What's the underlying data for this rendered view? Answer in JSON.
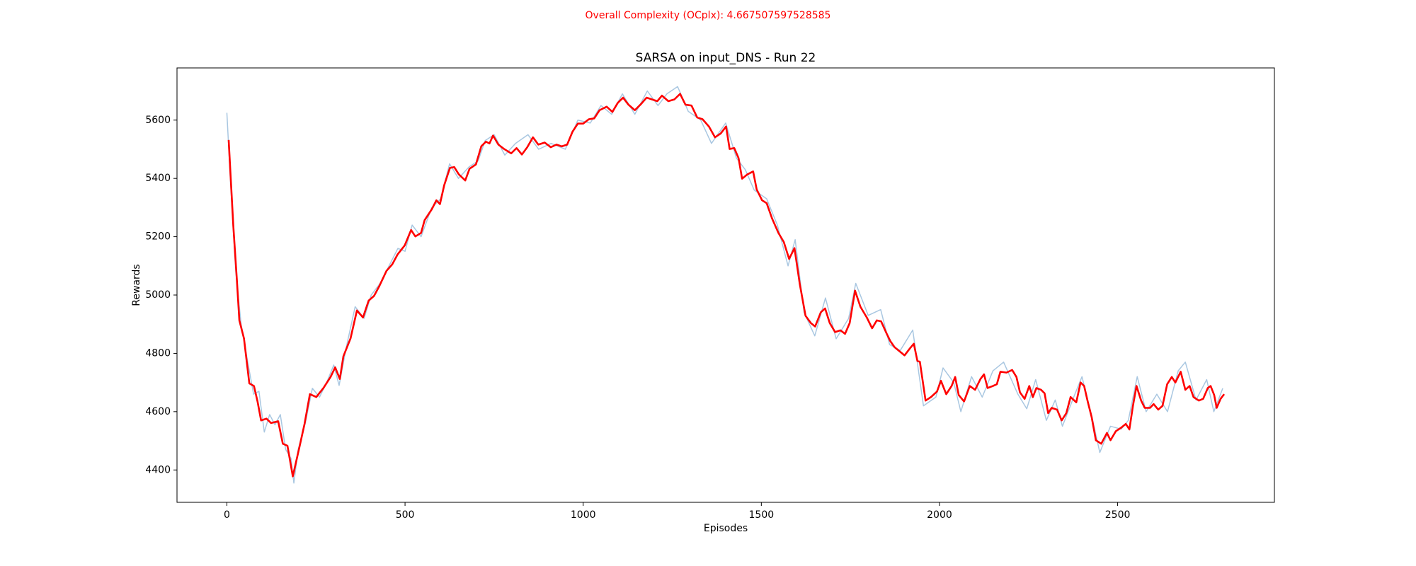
{
  "chart_data": {
    "type": "line",
    "suptitle": "Overall Complexity (OCplx): 4.667507597528585",
    "title": "SARSA on input_DNS - Run 22",
    "xlabel": "Episodes",
    "ylabel": "Rewards",
    "xlim": [
      -140,
      2940
    ],
    "ylim": [
      4289,
      5779
    ],
    "xticks": [
      0,
      500,
      1000,
      1500,
      2000,
      2500
    ],
    "yticks": [
      4400,
      4600,
      4800,
      5000,
      5200,
      5400,
      5600
    ],
    "series": [
      {
        "color": "#a9c7e1",
        "width": 1.5,
        "x": [
          0,
          10,
          25,
          40,
          60,
          75,
          90,
          105,
          120,
          135,
          150,
          165,
          180,
          188,
          200,
          220,
          240,
          260,
          280,
          300,
          315,
          335,
          360,
          385,
          405,
          430,
          455,
          480,
          500,
          520,
          545,
          575,
          600,
          625,
          650,
          680,
          705,
          725,
          750,
          780,
          810,
          845,
          875,
          910,
          950,
          985,
          1020,
          1050,
          1080,
          1110,
          1145,
          1180,
          1210,
          1235,
          1265,
          1295,
          1330,
          1360,
          1400,
          1430,
          1455,
          1480,
          1515,
          1545,
          1575,
          1595,
          1620,
          1650,
          1680,
          1710,
          1745,
          1765,
          1800,
          1835,
          1860,
          1890,
          1925,
          1955,
          1990,
          2010,
          2040,
          2060,
          2090,
          2120,
          2150,
          2180,
          2220,
          2245,
          2270,
          2300,
          2325,
          2345,
          2380,
          2400,
          2430,
          2450,
          2480,
          2510,
          2530,
          2555,
          2580,
          2610,
          2640,
          2670,
          2690,
          2720,
          2750,
          2770,
          2795
        ],
        "values": [
          5625,
          5390,
          5080,
          4900,
          4760,
          4660,
          4670,
          4530,
          4590,
          4555,
          4590,
          4470,
          4440,
          4355,
          4470,
          4560,
          4680,
          4650,
          4700,
          4760,
          4690,
          4820,
          4960,
          4920,
          5000,
          5040,
          5100,
          5160,
          5150,
          5240,
          5200,
          5300,
          5330,
          5450,
          5400,
          5440,
          5460,
          5530,
          5550,
          5480,
          5520,
          5550,
          5500,
          5520,
          5500,
          5600,
          5590,
          5650,
          5620,
          5690,
          5620,
          5700,
          5650,
          5690,
          5715,
          5630,
          5600,
          5520,
          5590,
          5470,
          5430,
          5360,
          5330,
          5240,
          5100,
          5190,
          4940,
          4860,
          4990,
          4850,
          4920,
          5040,
          4930,
          4950,
          4830,
          4810,
          4880,
          4620,
          4650,
          4750,
          4700,
          4600,
          4720,
          4650,
          4740,
          4770,
          4660,
          4610,
          4710,
          4570,
          4640,
          4550,
          4660,
          4720,
          4570,
          4460,
          4550,
          4540,
          4570,
          4720,
          4600,
          4660,
          4600,
          4740,
          4770,
          4640,
          4710,
          4600,
          4680
        ]
      },
      {
        "color": "#ff0000",
        "width": 2.6,
        "x": [
          5,
          18,
          28,
          35,
          48,
          63,
          76,
          86,
          96,
          111,
          124,
          144,
          157,
          170,
          185,
          205,
          218,
          233,
          251,
          271,
          291,
          304,
          317,
          327,
          347,
          365,
          382,
          398,
          413,
          428,
          448,
          464,
          479,
          499,
          517,
          529,
          545,
          555,
          575,
          588,
          598,
          610,
          626,
          638,
          651,
          669,
          681,
          699,
          714,
          727,
          737,
          747,
          762,
          778,
          798,
          813,
          828,
          843,
          859,
          874,
          892,
          909,
          925,
          940,
          955,
          970,
          985,
          1000,
          1016,
          1031,
          1046,
          1066,
          1082,
          1097,
          1112,
          1127,
          1145,
          1163,
          1178,
          1193,
          1208,
          1221,
          1239,
          1256,
          1272,
          1287,
          1304,
          1320,
          1335,
          1353,
          1370,
          1386,
          1401,
          1411,
          1424,
          1436,
          1446,
          1461,
          1477,
          1487,
          1502,
          1515,
          1530,
          1548,
          1563,
          1578,
          1593,
          1608,
          1624,
          1639,
          1651,
          1667,
          1679,
          1692,
          1707,
          1722,
          1735,
          1748,
          1763,
          1778,
          1796,
          1811,
          1824,
          1836,
          1852,
          1862,
          1874,
          1890,
          1902,
          1917,
          1928,
          1938,
          1945,
          1961,
          1976,
          1993,
          2004,
          2019,
          2034,
          2044,
          2054,
          2069,
          2085,
          2100,
          2115,
          2125,
          2135,
          2150,
          2161,
          2171,
          2188,
          2204,
          2216,
          2226,
          2239,
          2252,
          2262,
          2272,
          2285,
          2295,
          2305,
          2315,
          2330,
          2343,
          2356,
          2368,
          2384,
          2396,
          2406,
          2416,
          2427,
          2439,
          2454,
          2470,
          2480,
          2495,
          2510,
          2523,
          2533,
          2543,
          2553,
          2566,
          2576,
          2591,
          2601,
          2614,
          2626,
          2639,
          2652,
          2662,
          2677,
          2690,
          2702,
          2713,
          2728,
          2740,
          2753,
          2761,
          2771,
          2778,
          2789,
          2799
        ],
        "values": [
          5532,
          5238,
          5052,
          4913,
          4851,
          4697,
          4688,
          4635,
          4570,
          4576,
          4561,
          4567,
          4490,
          4483,
          4378,
          4486,
          4558,
          4660,
          4650,
          4681,
          4719,
          4752,
          4712,
          4790,
          4851,
          4947,
          4923,
          4981,
          4997,
          5031,
          5083,
          5105,
          5139,
          5170,
          5223,
          5201,
          5213,
          5257,
          5294,
          5325,
          5312,
          5377,
          5436,
          5439,
          5414,
          5393,
          5433,
          5448,
          5510,
          5526,
          5520,
          5547,
          5516,
          5501,
          5486,
          5504,
          5482,
          5507,
          5541,
          5516,
          5523,
          5507,
          5516,
          5510,
          5516,
          5560,
          5588,
          5588,
          5603,
          5606,
          5634,
          5646,
          5628,
          5659,
          5677,
          5653,
          5634,
          5656,
          5677,
          5671,
          5665,
          5684,
          5665,
          5671,
          5690,
          5653,
          5650,
          5609,
          5603,
          5578,
          5541,
          5554,
          5578,
          5501,
          5504,
          5470,
          5399,
          5414,
          5424,
          5362,
          5325,
          5315,
          5263,
          5213,
          5182,
          5124,
          5161,
          5037,
          4929,
          4904,
          4892,
          4941,
          4954,
          4904,
          4873,
          4879,
          4867,
          4904,
          5015,
          4960,
          4923,
          4886,
          4913,
          4910,
          4867,
          4842,
          4821,
          4805,
          4793,
          4817,
          4833,
          4774,
          4771,
          4638,
          4650,
          4669,
          4706,
          4660,
          4688,
          4719,
          4657,
          4635,
          4688,
          4675,
          4712,
          4728,
          4681,
          4688,
          4694,
          4737,
          4734,
          4743,
          4719,
          4666,
          4644,
          4688,
          4650,
          4681,
          4675,
          4663,
          4595,
          4613,
          4607,
          4570,
          4595,
          4650,
          4632,
          4700,
          4688,
          4635,
          4582,
          4502,
          4490,
          4527,
          4502,
          4533,
          4545,
          4558,
          4539,
          4620,
          4688,
          4638,
          4613,
          4613,
          4626,
          4607,
          4620,
          4694,
          4719,
          4700,
          4737,
          4675,
          4688,
          4650,
          4638,
          4644,
          4681,
          4688,
          4657,
          4613,
          4644,
          4660
        ]
      }
    ]
  }
}
